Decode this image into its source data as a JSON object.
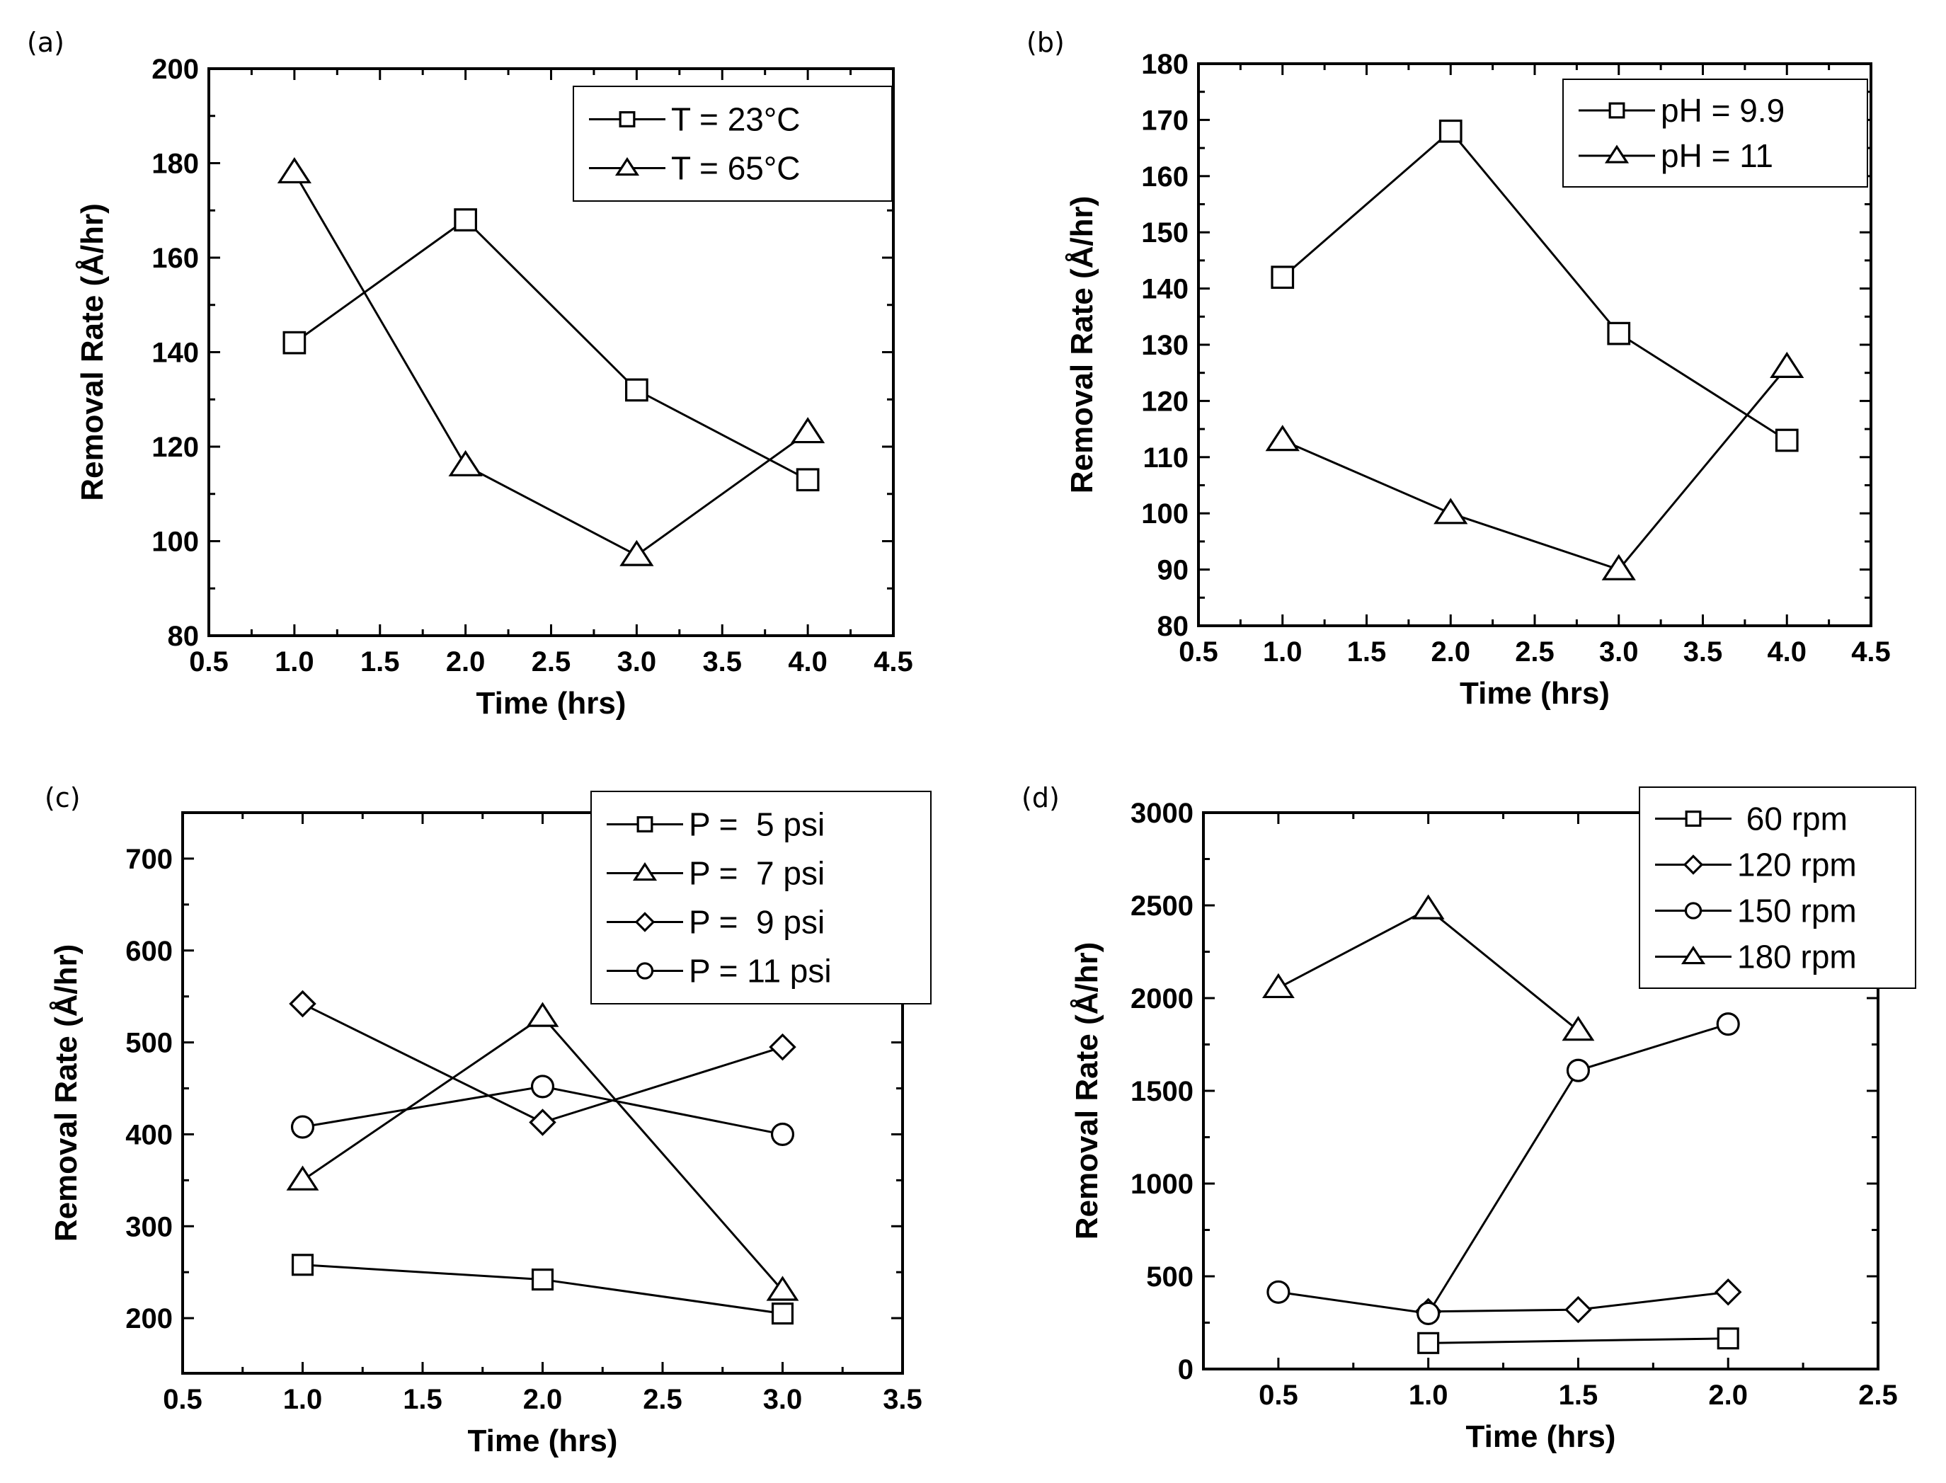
{
  "chart_data": [
    {
      "panel_label": "(a)",
      "type": "line",
      "xlabel": "Time (hrs)",
      "ylabel": "Removal Rate (Å/hr)",
      "xlim": [
        0.5,
        4.5
      ],
      "ylim": [
        80,
        200
      ],
      "xticks": [
        0.5,
        1.0,
        1.5,
        2.0,
        2.5,
        3.0,
        3.5,
        4.0,
        4.5
      ],
      "xtick_labels": [
        "0.5",
        "1.0",
        "1.5",
        "2.0",
        "2.5",
        "3.0",
        "3.5",
        "4.0",
        "4.5"
      ],
      "yticks": [
        80,
        100,
        120,
        140,
        160,
        180,
        200
      ],
      "ytick_labels": [
        "80",
        "100",
        "120",
        "140",
        "160",
        "180",
        "200"
      ],
      "legend_position": "top-right",
      "series": [
        {
          "name": "T = 23°C",
          "marker": "square",
          "x": [
            1.0,
            2.0,
            3.0,
            4.0
          ],
          "values": [
            142,
            168,
            132,
            113
          ]
        },
        {
          "name": "T = 65°C",
          "marker": "triangle",
          "x": [
            1.0,
            2.0,
            3.0,
            4.0
          ],
          "values": [
            178,
            116,
            97,
            123
          ]
        }
      ]
    },
    {
      "panel_label": "(b)",
      "type": "line",
      "xlabel": "Time (hrs)",
      "ylabel": "Removal Rate (Å/hr)",
      "xlim": [
        0.5,
        4.5
      ],
      "ylim": [
        80,
        180
      ],
      "xticks": [
        0.5,
        1.0,
        1.5,
        2.0,
        2.5,
        3.0,
        3.5,
        4.0,
        4.5
      ],
      "xtick_labels": [
        "0.5",
        "1.0",
        "1.5",
        "2.0",
        "2.5",
        "3.0",
        "3.5",
        "4.0",
        "4.5"
      ],
      "yticks": [
        80,
        90,
        100,
        110,
        120,
        130,
        140,
        150,
        160,
        170,
        180
      ],
      "ytick_labels": [
        "80",
        "90",
        "100",
        "110",
        "120",
        "130",
        "140",
        "150",
        "160",
        "170",
        "180"
      ],
      "legend_position": "top-right",
      "series": [
        {
          "name": "pH = 9.9",
          "marker": "square",
          "x": [
            1.0,
            2.0,
            3.0,
            4.0
          ],
          "values": [
            142,
            168,
            132,
            113
          ]
        },
        {
          "name": "pH = 11",
          "marker": "triangle",
          "x": [
            1.0,
            2.0,
            3.0,
            4.0
          ],
          "values": [
            113,
            100,
            90,
            126
          ]
        }
      ]
    },
    {
      "panel_label": "(c)",
      "type": "line",
      "xlabel": "Time (hrs)",
      "ylabel": "Removal Rate (Å/hr)",
      "xlim": [
        0.5,
        3.5
      ],
      "ylim": [
        140,
        750
      ],
      "xticks": [
        0.5,
        1.0,
        1.5,
        2.0,
        2.5,
        3.0,
        3.5
      ],
      "xtick_labels": [
        "0.5",
        "1.0",
        "1.5",
        "2.0",
        "2.5",
        "3.0",
        "3.5"
      ],
      "yticks": [
        200,
        300,
        400,
        500,
        600,
        700
      ],
      "ytick_labels": [
        "200",
        "300",
        "400",
        "500",
        "600",
        "700"
      ],
      "legend_position": "top-right",
      "series": [
        {
          "name": "P =  5 psi",
          "marker": "square",
          "x": [
            1.0,
            2.0,
            3.0
          ],
          "values": [
            258,
            242,
            205
          ]
        },
        {
          "name": "P =  7 psi",
          "marker": "triangle",
          "x": [
            1.0,
            2.0,
            3.0
          ],
          "values": [
            350,
            528,
            230
          ]
        },
        {
          "name": "P =  9 psi",
          "marker": "diamond",
          "x": [
            1.0,
            2.0,
            3.0
          ],
          "values": [
            542,
            413,
            495
          ]
        },
        {
          "name": "P = 11 psi",
          "marker": "circle",
          "x": [
            1.0,
            2.0,
            3.0
          ],
          "values": [
            408,
            452,
            400
          ]
        }
      ]
    },
    {
      "panel_label": "(d)",
      "type": "line",
      "xlabel": "Time (hrs)",
      "ylabel": "Removal Rate (Å/hr)",
      "xlim": [
        0.25,
        2.5
      ],
      "ylim": [
        0,
        3000
      ],
      "xticks": [
        0.5,
        1.0,
        1.5,
        2.0,
        2.5
      ],
      "xtick_labels": [
        "0.5",
        "1.0",
        "1.5",
        "2.0",
        "2.5"
      ],
      "yticks": [
        0,
        500,
        1000,
        1500,
        2000,
        2500,
        3000
      ],
      "ytick_labels": [
        "0",
        "500",
        "1000",
        "1500",
        "2000",
        "2500",
        "3000"
      ],
      "legend_position": "top-right",
      "series": [
        {
          "name": " 60 rpm",
          "marker": "square",
          "x": [
            1.0,
            2.0
          ],
          "values": [
            140,
            165
          ]
        },
        {
          "name": "120 rpm",
          "marker": "diamond",
          "x": [
            1.0,
            1.5,
            2.0
          ],
          "values": [
            310,
            320,
            415
          ]
        },
        {
          "name": "150 rpm",
          "marker": "circle",
          "x": [
            0.5,
            1.0,
            1.5,
            2.0
          ],
          "values": [
            415,
            300,
            1610,
            1860
          ]
        },
        {
          "name": "180 rpm",
          "marker": "triangle",
          "x": [
            0.5,
            1.0,
            1.5
          ],
          "values": [
            2055,
            2480,
            1825
          ]
        }
      ]
    }
  ]
}
